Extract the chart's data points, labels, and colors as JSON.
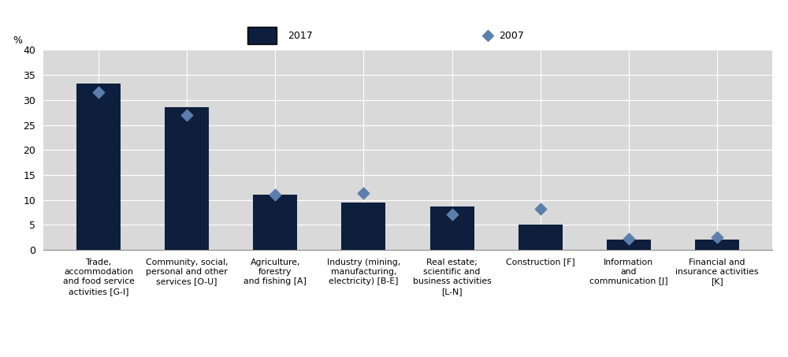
{
  "categories": [
    "Trade,\naccommodation\nand food service\nactivities [G-I]",
    "Community, social,\npersonal and other\nservices [O-U]",
    "Agriculture,\nforestry\nand fishing [A]",
    "Industry (mining,\nmanufacturing,\nelectricity) [B-E]",
    "Real estate;\nscientific and\nbusiness activities\n[L-N]",
    "Construction [F]",
    "Information\nand\ncommunication [J]",
    "Financial and\ninsurance activities\n[K]"
  ],
  "values_2017": [
    33.3,
    28.5,
    11.1,
    9.5,
    8.7,
    5.0,
    2.1,
    2.0
  ],
  "values_2007": [
    31.5,
    27.0,
    11.1,
    11.3,
    7.1,
    8.2,
    2.2,
    2.6
  ],
  "bar_color": "#0d1f3c",
  "diamond_color": "#5b7fad",
  "header_bg_color": "#c8c8c8",
  "figure_bg_color": "#ffffff",
  "plot_bg_color": "#d9d9d9",
  "ylabel": "%",
  "ylim": [
    0,
    40
  ],
  "yticks": [
    0,
    5,
    10,
    15,
    20,
    25,
    30,
    35,
    40
  ],
  "legend_2017_label": "2017",
  "legend_2007_label": "2007",
  "bar_width": 0.5
}
